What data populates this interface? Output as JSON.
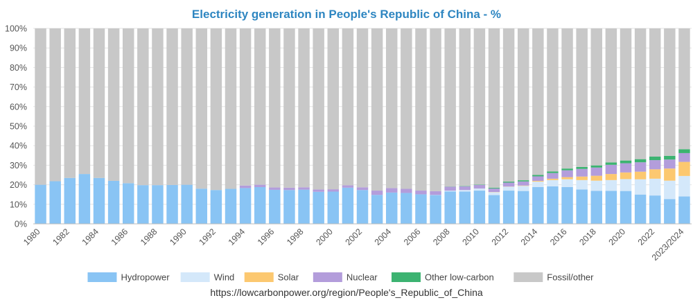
{
  "chart_data": {
    "type": "bar",
    "stacked": true,
    "title": "Electricity generation in People's Republic of China - %",
    "title_color": "#2e86c1",
    "source": "https://lowcarbonpower.org/region/People's_Republic_of_China",
    "xlabel": "",
    "ylabel": "",
    "ylim": [
      0,
      100
    ],
    "y_ticks": [
      "0%",
      "10%",
      "20%",
      "30%",
      "40%",
      "50%",
      "60%",
      "70%",
      "80%",
      "90%",
      "100%"
    ],
    "legend_position": "bottom",
    "categories": [
      "1980",
      "1981",
      "1982",
      "1983",
      "1984",
      "1985",
      "1986",
      "1987",
      "1988",
      "1989",
      "1990",
      "1991",
      "1992",
      "1993",
      "1994",
      "1995",
      "1996",
      "1997",
      "1998",
      "1999",
      "2000",
      "2001",
      "2002",
      "2003",
      "2004",
      "2005",
      "2006",
      "2007",
      "2008",
      "2009",
      "2010",
      "2011",
      "2012",
      "2013",
      "2014",
      "2015",
      "2016",
      "2017",
      "2018",
      "2019",
      "2020",
      "2021",
      "2022",
      "2023",
      "2023/2024"
    ],
    "x_tick_labels": [
      "1980",
      "1982",
      "1984",
      "1986",
      "1988",
      "1990",
      "1992",
      "1994",
      "1996",
      "1998",
      "2000",
      "2002",
      "2004",
      "2006",
      "2008",
      "2010",
      "2012",
      "2014",
      "2016",
      "2018",
      "2020",
      "2022",
      "2023/2024"
    ],
    "series": [
      {
        "name": "Hydropower",
        "color": "#89c4f4",
        "values": [
          20.0,
          21.8,
          23.5,
          25.5,
          23.5,
          22.0,
          20.8,
          19.8,
          19.8,
          19.9,
          20.0,
          18.0,
          17.3,
          17.9,
          18.3,
          18.8,
          17.4,
          17.3,
          17.5,
          16.4,
          16.5,
          18.5,
          17.3,
          14.8,
          16.0,
          15.8,
          15.1,
          14.7,
          16.6,
          16.5,
          17.0,
          14.7,
          17.0,
          16.8,
          18.8,
          19.2,
          18.8,
          17.6,
          16.9,
          16.9,
          16.8,
          15.0,
          14.5,
          12.7,
          14.0
        ]
      },
      {
        "name": "Wind",
        "color": "#d4e8fa",
        "values": [
          0,
          0,
          0,
          0,
          0,
          0,
          0,
          0,
          0,
          0,
          0,
          0,
          0,
          0,
          0,
          0,
          0,
          0,
          0,
          0,
          0,
          0,
          0,
          0,
          0,
          0,
          0,
          0.1,
          0.4,
          0.8,
          1.1,
          1.5,
          2.0,
          2.6,
          2.8,
          3.2,
          4.0,
          4.8,
          5.2,
          5.5,
          6.1,
          7.8,
          8.6,
          9.4,
          10.5
        ]
      },
      {
        "name": "Solar",
        "color": "#fcc870",
        "values": [
          0,
          0,
          0,
          0,
          0,
          0,
          0,
          0,
          0,
          0,
          0,
          0,
          0,
          0,
          0,
          0,
          0,
          0,
          0,
          0,
          0,
          0,
          0,
          0,
          0,
          0,
          0,
          0,
          0,
          0,
          0,
          0.1,
          0.1,
          0.2,
          0.4,
          0.7,
          1.1,
          1.8,
          2.5,
          3.1,
          3.4,
          3.9,
          4.8,
          6.2,
          7.2
        ]
      },
      {
        "name": "Nuclear",
        "color": "#b39ddb",
        "values": [
          0,
          0,
          0,
          0,
          0,
          0,
          0,
          0,
          0,
          0,
          0,
          0,
          0,
          0,
          1.3,
          1.2,
          1.2,
          1.2,
          1.2,
          1.2,
          1.2,
          1.2,
          1.4,
          2.2,
          2.3,
          2.1,
          1.9,
          1.9,
          2.0,
          1.9,
          1.8,
          1.8,
          2.0,
          2.1,
          2.3,
          2.9,
          3.5,
          3.9,
          4.2,
          4.7,
          4.7,
          4.8,
          4.7,
          4.6,
          4.5
        ]
      },
      {
        "name": "Other low-carbon",
        "color": "#3cb371",
        "values": [
          0,
          0,
          0,
          0,
          0,
          0,
          0,
          0,
          0,
          0,
          0,
          0,
          0,
          0,
          0,
          0,
          0,
          0,
          0,
          0,
          0,
          0,
          0,
          0,
          0,
          0,
          0,
          0,
          0.1,
          0.2,
          0.2,
          0.4,
          0.5,
          0.6,
          0.7,
          0.8,
          0.9,
          1.0,
          1.1,
          1.2,
          1.4,
          1.6,
          1.8,
          1.9,
          2.0
        ]
      },
      {
        "name": "Fossil/other",
        "color": "#c8c8c8",
        "values": [
          80.0,
          78.2,
          76.5,
          74.5,
          76.5,
          78.0,
          79.2,
          80.2,
          80.2,
          80.1,
          80.0,
          82.0,
          82.7,
          82.1,
          80.4,
          80.0,
          81.4,
          81.5,
          81.3,
          82.4,
          82.3,
          80.3,
          81.3,
          83.0,
          81.7,
          82.1,
          83.0,
          83.3,
          80.9,
          80.6,
          79.9,
          81.5,
          78.4,
          77.7,
          75.0,
          73.2,
          71.7,
          70.9,
          70.1,
          68.6,
          67.6,
          66.9,
          65.6,
          65.2,
          61.8
        ]
      }
    ]
  }
}
